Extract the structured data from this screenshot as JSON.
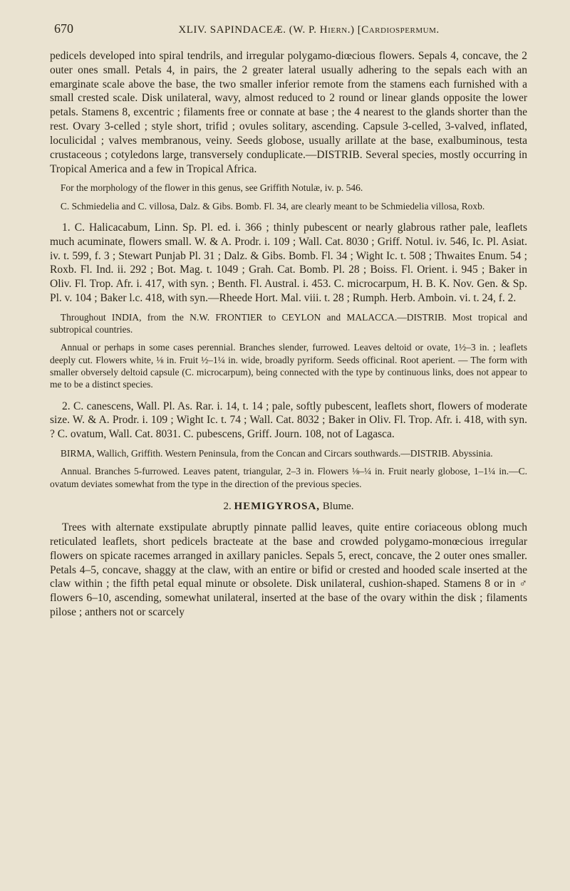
{
  "page": {
    "number": "670",
    "running_head": "XLIV. SAPINDACEÆ.  (W. P. Hiern.)  [Cardiospermum."
  },
  "intro": {
    "paragraph": "pedicels developed into spiral tendrils, and irregular polygamo-diœcious flowers. Sepals 4, concave, the 2 outer ones small. Petals 4, in pairs, the 2 greater lateral usually adhering to the sepals each with an emarginate scale above the base, the two smaller inferior remote from the stamens each furnished with a small crested scale. Disk unilateral, wavy, almost reduced to 2 round or linear glands opposite the lower petals. Stamens 8, excentric ; filaments free or connate at base ; the 4 nearest to the glands shorter than the rest. Ovary 3-celled ; style short, trifid ; ovules solitary, ascending. Capsule 3-celled, 3-valved, inflated, loculicidal ; valves membranous, veiny. Seeds globose, usually arillate at the base, exalbuminous, testa crustaceous ; cotyledons large, transversely conduplicate.—DISTRIB. Several species, mostly occurring in Tropical America and a few in Tropical Africa.",
    "morph_note": "For the morphology of the flower in this genus, see Griffith Notulæ, iv. p. 546.",
    "syn_note": "C. Schmiedelia and C. villosa, Dalz. & Gibs. Bomb. Fl. 34, are clearly meant to be Schmiedelia villosa, Roxb."
  },
  "species1": {
    "head": "1. C. Halicacabum, Linn. Sp. Pl. ed. i. 366 ; thinly pubescent or nearly glabrous rather pale, leaflets much acuminate, flowers small. W. & A. Prodr. i. 109 ; Wall. Cat. 8030 ; Griff. Notul. iv. 546, Ic. Pl. Asiat. iv. t. 599, f. 3 ; Stewart Punjab Pl. 31 ; Dalz. & Gibs. Bomb. Fl. 34 ; Wight Ic. t. 508 ; Thwaites Enum. 54 ; Roxb. Fl. Ind. ii. 292 ; Bot. Mag. t. 1049 ; Grah. Cat. Bomb. Pl. 28 ; Boiss. Fl. Orient. i. 945 ; Baker in Oliv. Fl. Trop. Afr. i. 417, with syn. ; Benth. Fl. Austral. i. 453.  C. microcarpum, H. B. K. Nov. Gen. & Sp. Pl. v. 104 ; Baker l.c. 418, with syn.—Rheede Hort. Mal. viii. t. 28 ; Rumph. Herb. Amboin. vi. t. 24, f. 2.",
    "distrib": "Throughout INDIA, from the N.W. FRONTIER to CEYLON and MALACCA.—DISTRIB. Most tropical and subtropical countries.",
    "desc": "Annual or perhaps in some cases perennial. Branches slender, furrowed. Leaves deltoid or ovate, 1½–3 in. ; leaflets deeply cut. Flowers white, ⅛ in. Fruit ½–1¼ in. wide, broadly pyriform. Seeds officinal. Root aperient. — The form with smaller obversely deltoid capsule (C. microcarpum), being connected with the type by continuous links, does not appear to me to be a distinct species."
  },
  "species2": {
    "head": "2. C. canescens, Wall. Pl. As. Rar. i. 14, t. 14 ; pale, softly pubescent, leaflets short, flowers of moderate size. W. & A. Prodr. i. 109 ; Wight Ic. t. 74 ; Wall. Cat. 8032 ; Baker in Oliv. Fl. Trop. Afr. i. 418, with syn. ? C. ovatum, Wall. Cat. 8031.  C. pubescens, Griff. Journ. 108, not of Lagasca.",
    "distrib": "BIRMA, Wallich, Griffith. Western Peninsula, from the Concan and Circars southwards.—DISTRIB. Abyssinia.",
    "desc": "Annual. Branches 5-furrowed. Leaves patent, triangular, 2–3 in. Flowers ⅛–¼ in. Fruit nearly globose, 1–1¼ in.—C. ovatum deviates somewhat from the type in the direction of the previous species."
  },
  "genus2": {
    "number": "2.",
    "name": "HEMIGYROSA,",
    "author": "Blume.",
    "desc": "Trees with alternate exstipulate abruptly pinnate pallid leaves, quite entire coriaceous oblong much reticulated leaflets, short pedicels bracteate at the base and crowded polygamo-monœcious irregular flowers on spicate racemes arranged in axillary panicles. Sepals 5, erect, concave, the 2 outer ones smaller. Petals 4–5, concave, shaggy at the claw, with an entire or bifid or crested and hooded scale inserted at the claw within ; the fifth petal equal minute or obsolete. Disk unilateral, cushion-shaped. Stamens 8 or in ♂ flowers 6–10, ascending, somewhat unilateral, inserted at the base of the ovary within the disk ; filaments pilose ; anthers not or scarcely"
  }
}
